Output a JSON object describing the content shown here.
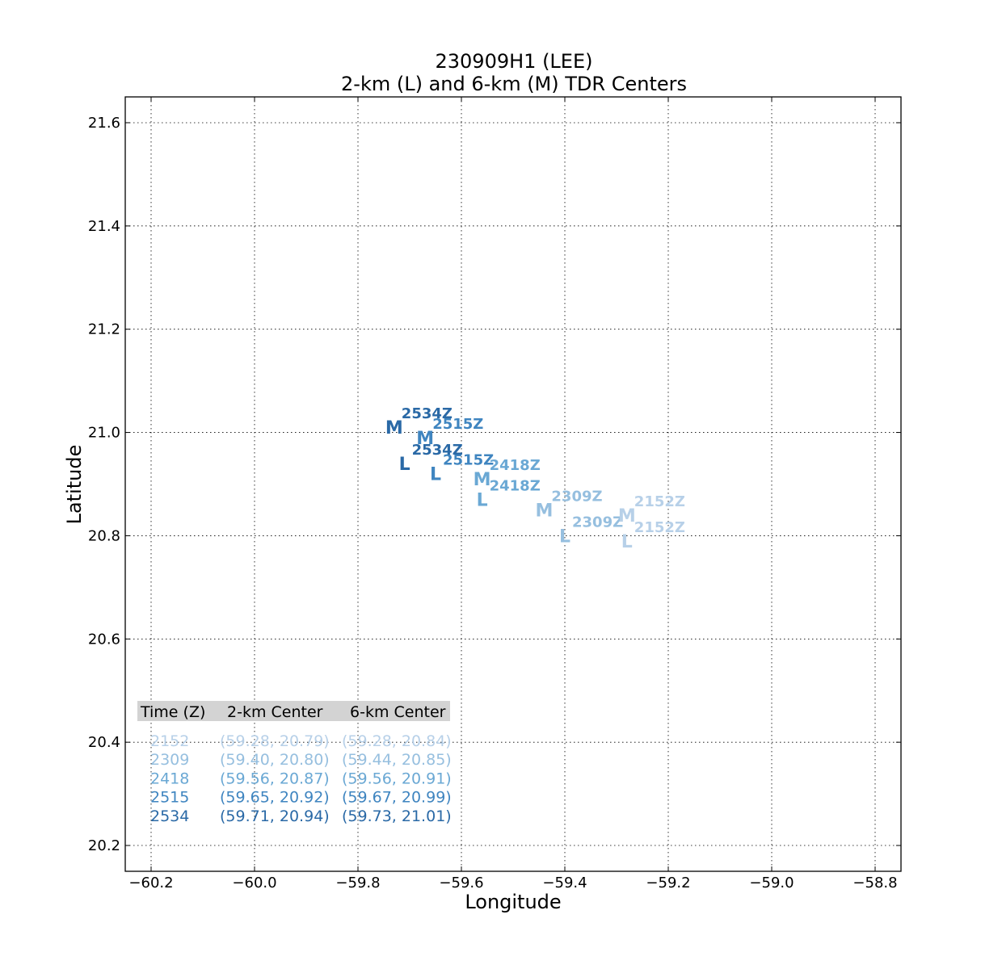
{
  "chart_data": {
    "type": "scatter",
    "title": "230909H1 (LEE)",
    "subtitle": "2-km (L) and 6-km (M) TDR Centers",
    "xlabel": "Longitude",
    "ylabel": "Latitude",
    "xlim": [
      -60.25,
      -58.75
    ],
    "ylim": [
      20.15,
      21.65
    ],
    "xticks": [
      -60.2,
      -60.0,
      -59.8,
      -59.6,
      -59.4,
      -59.2,
      -59.0,
      -58.8
    ],
    "xtick_labels": [
      "−60.2",
      "−60.0",
      "−59.8",
      "−59.6",
      "−59.4",
      "−59.2",
      "−59.0",
      "−58.8"
    ],
    "yticks": [
      20.2,
      20.4,
      20.6,
      20.8,
      21.0,
      21.2,
      21.4,
      21.6
    ],
    "ytick_labels": [
      "20.2",
      "20.4",
      "20.6",
      "20.8",
      "21.0",
      "21.2",
      "21.4",
      "21.6"
    ],
    "grid": true,
    "grid_style": "dotted",
    "series": [
      {
        "name": "2-km (L)",
        "marker": "L",
        "points": [
          {
            "time": "2152Z",
            "x": -59.28,
            "y": 20.79,
            "color": "#b7d0e8"
          },
          {
            "time": "2309Z",
            "x": -59.4,
            "y": 20.8,
            "color": "#96bfdf"
          },
          {
            "time": "2418Z",
            "x": -59.56,
            "y": 20.87,
            "color": "#6aa8d4"
          },
          {
            "time": "2515Z",
            "x": -59.65,
            "y": 20.92,
            "color": "#3f85c0"
          },
          {
            "time": "2534Z",
            "x": -59.71,
            "y": 20.94,
            "color": "#2a69a6"
          }
        ]
      },
      {
        "name": "6-km (M)",
        "marker": "M",
        "points": [
          {
            "time": "2152Z",
            "x": -59.28,
            "y": 20.84,
            "color": "#b7d0e8"
          },
          {
            "time": "2309Z",
            "x": -59.44,
            "y": 20.85,
            "color": "#96bfdf"
          },
          {
            "time": "2418Z",
            "x": -59.56,
            "y": 20.91,
            "color": "#6aa8d4"
          },
          {
            "time": "2515Z",
            "x": -59.67,
            "y": 20.99,
            "color": "#3f85c0"
          },
          {
            "time": "2534Z",
            "x": -59.73,
            "y": 21.01,
            "color": "#2a69a6"
          }
        ]
      }
    ],
    "table": {
      "headers": [
        "Time (Z)",
        "2-km Center",
        "6-km Center"
      ],
      "header_background": "#d3d3d3",
      "rows": [
        {
          "time": "2152",
          "center_2km": "(59.28, 20.79)",
          "center_6km": "(59.28, 20.84)",
          "color": "#b7d0e8"
        },
        {
          "time": "2309",
          "center_2km": "(59.40, 20.80)",
          "center_6km": "(59.44, 20.85)",
          "color": "#96bfdf"
        },
        {
          "time": "2418",
          "center_2km": "(59.56, 20.87)",
          "center_6km": "(59.56, 20.91)",
          "color": "#6aa8d4"
        },
        {
          "time": "2515",
          "center_2km": "(59.65, 20.92)",
          "center_6km": "(59.67, 20.99)",
          "color": "#3f85c0"
        },
        {
          "time": "2534",
          "center_2km": "(59.71, 20.94)",
          "center_6km": "(59.73, 21.01)",
          "color": "#2a69a6"
        }
      ]
    }
  }
}
